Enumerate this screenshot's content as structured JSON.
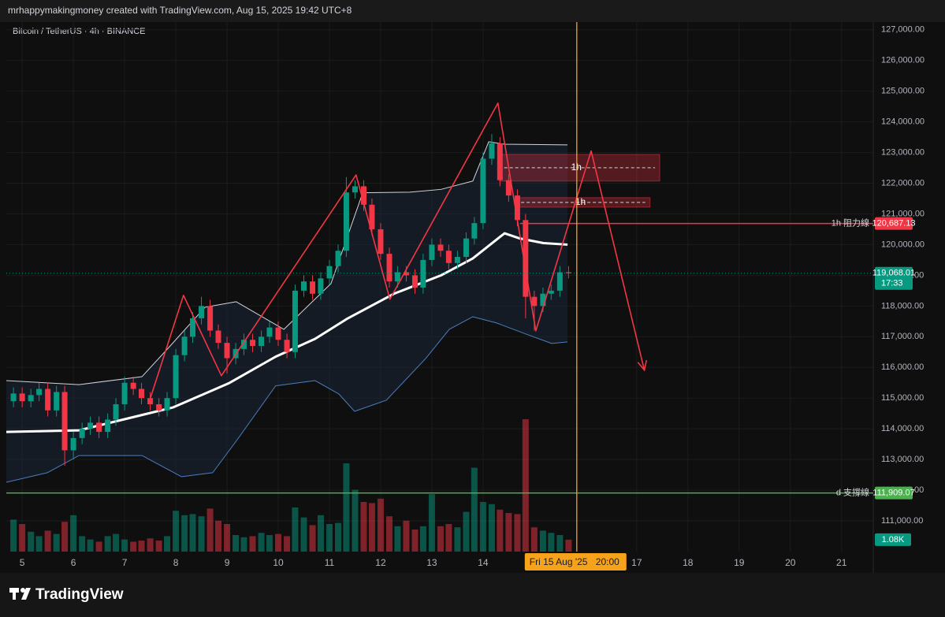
{
  "header": {
    "credit": "mrhappymakingmoney created with TradingView.com, Aug 15, 2025 19:42 UTC+8",
    "brand": "TradingView"
  },
  "chart_data": {
    "type": "candlestick",
    "title": "Bitcoin / TetherUS · 4h · BINANCE",
    "x": [
      4.83,
      5,
      5.17,
      5.33,
      5.5,
      5.67,
      5.83,
      6,
      6.17,
      6.33,
      6.5,
      6.67,
      6.83,
      7,
      7.17,
      7.33,
      7.5,
      7.67,
      7.83,
      8,
      8.17,
      8.33,
      8.5,
      8.67,
      8.83,
      9,
      9.17,
      9.33,
      9.5,
      9.67,
      9.83,
      10,
      10.17,
      10.33,
      10.5,
      10.67,
      10.83,
      11,
      11.17,
      11.33,
      11.5,
      11.67,
      11.83,
      12,
      12.17,
      12.33,
      12.5,
      12.67,
      12.83,
      13,
      13.17,
      13.33,
      13.5,
      13.67,
      13.83,
      14,
      14.17,
      14.33,
      14.5,
      14.67,
      14.83,
      15,
      15.17,
      15.33,
      15.5,
      15.67
    ],
    "open": [
      114900,
      115150,
      114900,
      115100,
      115300,
      114600,
      115200,
      113300,
      113700,
      114000,
      114200,
      113900,
      114300,
      114800,
      115500,
      115300,
      115000,
      114800,
      114600,
      115000,
      116400,
      117000,
      117600,
      118000,
      117200,
      116800,
      116300,
      116600,
      116900,
      116700,
      117000,
      117300,
      116900,
      116500,
      118500,
      118800,
      118400,
      118900,
      119300,
      119800,
      121700,
      121900,
      121300,
      120500,
      119700,
      118800,
      119100,
      119000,
      118600,
      119500,
      120000,
      119800,
      119400,
      119600,
      120200,
      120700,
      122800,
      123300,
      122100,
      121600,
      120800,
      118300,
      118000,
      118400,
      118500,
      119100
    ],
    "high": [
      115350,
      115350,
      115300,
      115500,
      115500,
      115400,
      115400,
      113900,
      114200,
      114400,
      114400,
      114500,
      115000,
      115700,
      115700,
      115500,
      115200,
      115000,
      115200,
      116600,
      117200,
      117800,
      118300,
      118200,
      117400,
      117000,
      116800,
      117100,
      117100,
      117200,
      117500,
      117500,
      117100,
      118700,
      119000,
      119000,
      119100,
      119500,
      120000,
      122200,
      122100,
      122100,
      121500,
      120700,
      119900,
      119300,
      119300,
      119200,
      119700,
      120200,
      120200,
      120000,
      119800,
      120400,
      120900,
      123000,
      123600,
      123500,
      122300,
      121800,
      121000,
      118500,
      118600,
      118700,
      119300,
      119300
    ],
    "low": [
      114700,
      114700,
      114700,
      114900,
      114400,
      114400,
      112800,
      113000,
      113500,
      113800,
      113700,
      113700,
      114100,
      114600,
      115100,
      114800,
      114600,
      114400,
      114400,
      114800,
      116200,
      116800,
      117400,
      117000,
      116600,
      115800,
      116100,
      116400,
      116500,
      116500,
      116800,
      116700,
      116300,
      116300,
      118300,
      118200,
      118200,
      118700,
      119100,
      119600,
      121500,
      121100,
      120300,
      119500,
      118600,
      118600,
      118800,
      118400,
      118400,
      119300,
      119600,
      119200,
      119200,
      119400,
      120000,
      120500,
      122600,
      121900,
      121400,
      120600,
      117600,
      117200,
      117800,
      118200,
      118300,
      118900
    ],
    "close": [
      115150,
      114900,
      115100,
      115300,
      114600,
      115200,
      113300,
      113700,
      114000,
      114200,
      113900,
      114300,
      114800,
      115500,
      115300,
      115000,
      114800,
      114600,
      115000,
      116400,
      117000,
      117600,
      118000,
      117200,
      116800,
      116300,
      116600,
      116900,
      116700,
      117000,
      117300,
      116900,
      116500,
      118500,
      118800,
      118400,
      118900,
      119300,
      119800,
      121700,
      121900,
      121300,
      120500,
      119700,
      118800,
      119100,
      119000,
      118600,
      119500,
      120000,
      119800,
      119400,
      119600,
      120200,
      120700,
      122800,
      123300,
      122100,
      121600,
      120800,
      118300,
      118000,
      118400,
      118500,
      119100,
      119068.01
    ],
    "up_color": "#089981",
    "down_color": "#f23645",
    "volume": [
      2.9,
      2.5,
      1.8,
      1.4,
      1.9,
      1.6,
      2.7,
      3.3,
      1.4,
      1.1,
      0.9,
      1.4,
      1.6,
      1.1,
      0.9,
      1.0,
      1.2,
      1.0,
      1.4,
      3.7,
      3.3,
      3.4,
      3.2,
      3.9,
      2.8,
      2.5,
      1.5,
      1.3,
      1.4,
      1.7,
      1.5,
      1.6,
      1.4,
      4.0,
      3.1,
      2.4,
      3.3,
      2.5,
      2.6,
      8.0,
      5.6,
      4.5,
      4.4,
      4.8,
      3.2,
      2.3,
      2.8,
      2.0,
      2.3,
      5.2,
      2.3,
      2.5,
      2.2,
      3.6,
      7.6,
      4.5,
      4.3,
      3.8,
      3.5,
      3.4,
      12.0,
      2.2,
      1.9,
      1.7,
      1.5,
      1.08
    ],
    "volume_label": "1.08K",
    "volume_ylim": [
      0,
      48
    ],
    "xlim": [
      4.69,
      21.62
    ],
    "xticks": [
      5,
      6,
      7,
      8,
      9,
      10,
      11,
      12,
      13,
      14,
      17,
      18,
      19,
      20,
      21
    ],
    "ylim": [
      110000,
      127250
    ],
    "yticks": [
      {
        "value": 111000,
        "label": "111,000.00"
      },
      {
        "value": 112000,
        "label": "112,000.00"
      },
      {
        "value": 113000,
        "label": "113,000.00"
      },
      {
        "value": 114000,
        "label": "114,000.00"
      },
      {
        "value": 115000,
        "label": "115,000.00"
      },
      {
        "value": 116000,
        "label": "116,000.00"
      },
      {
        "value": 117000,
        "label": "117,000.00"
      },
      {
        "value": 118000,
        "label": "118,000.00"
      },
      {
        "value": 119000,
        "label": "119,000.00"
      },
      {
        "value": 120000,
        "label": "120,000.00"
      },
      {
        "value": 121000,
        "label": "121,000.00"
      },
      {
        "value": 122000,
        "label": "122,000.00"
      },
      {
        "value": 123000,
        "label": "123,000.00"
      },
      {
        "value": 124000,
        "label": "124,000.00"
      },
      {
        "value": 125000,
        "label": "125,000.00"
      },
      {
        "value": 126000,
        "label": "126,000.00"
      },
      {
        "value": 127000,
        "label": "127,000.00"
      }
    ],
    "grid": true,
    "indicators": [
      {
        "color": "#d1d4dc",
        "width": 1,
        "x": [
          4.69,
          6.11,
          7.34,
          7.88,
          8.57,
          9.18,
          10.11,
          11.03,
          11.65,
          12.57,
          13.18,
          13.8,
          14.11,
          14.42,
          15.65
        ],
        "values": [
          115570,
          115440,
          115700,
          116680,
          117960,
          118140,
          117240,
          118730,
          121690,
          121710,
          121800,
          122070,
          123350,
          123270,
          123250
        ]
      },
      {
        "color": "#4a7fc1",
        "width": 1,
        "x": [
          4.69,
          5.49,
          6.11,
          7.34,
          8.11,
          8.72,
          9.18,
          9.95,
          10.72,
          11.18,
          11.49,
          12.11,
          12.88,
          13.34,
          13.8,
          14.26,
          14.88,
          15.34,
          15.65
        ],
        "values": [
          112260,
          112570,
          113130,
          113130,
          112440,
          112570,
          113600,
          115400,
          115570,
          115140,
          114570,
          114930,
          116290,
          117240,
          117650,
          117450,
          117060,
          116780,
          116830
        ]
      },
      {
        "color": "#ffffff",
        "width": 3,
        "x": [
          4.69,
          6.11,
          7.34,
          7.95,
          9.03,
          9.95,
          10.72,
          11.34,
          12.26,
          13.18,
          13.8,
          14.42,
          14.72,
          15.18,
          15.65
        ],
        "values": [
          113900,
          113950,
          114450,
          114700,
          115480,
          116350,
          116930,
          117580,
          118400,
          119000,
          119550,
          120370,
          120200,
          120050,
          120000
        ]
      }
    ],
    "drawings": [
      {
        "color": "#f23645",
        "x": [
          7.49,
          8.15,
          8.89,
          11.52,
          12.18,
          14.29,
          15.03,
          16.11,
          17.15
        ],
        "y": [
          114930,
          118350,
          115730,
          122270,
          118220,
          124610,
          117190,
          123050,
          115910
        ]
      }
    ],
    "zones": [
      {
        "x": [
          14.32,
          17.45
        ],
        "y": [
          122070,
          122940
        ],
        "label": "1h",
        "color": "#f23645"
      },
      {
        "x": [
          14.65,
          17.26
        ],
        "y": [
          121220,
          121530
        ],
        "label": "1h",
        "color": "#f23645"
      }
    ],
    "levels": [
      {
        "value": 120687.13,
        "label": "120,687.13",
        "name": "1h 阻力線",
        "color": "#f23645",
        "from": 14.72
      },
      {
        "value": 111909.07,
        "label": "111,909.07",
        "name": "d 支撐線",
        "color": "#4caf50",
        "from": 4.69
      }
    ],
    "price_line": {
      "value": 119068.01,
      "label": "119,068.01",
      "countdown": "17:33",
      "color": "#089981"
    },
    "time_marker": {
      "value": 15.83,
      "label": "Fri 15 Aug '25",
      "time": "20:00",
      "color": "#f7a21b"
    }
  }
}
